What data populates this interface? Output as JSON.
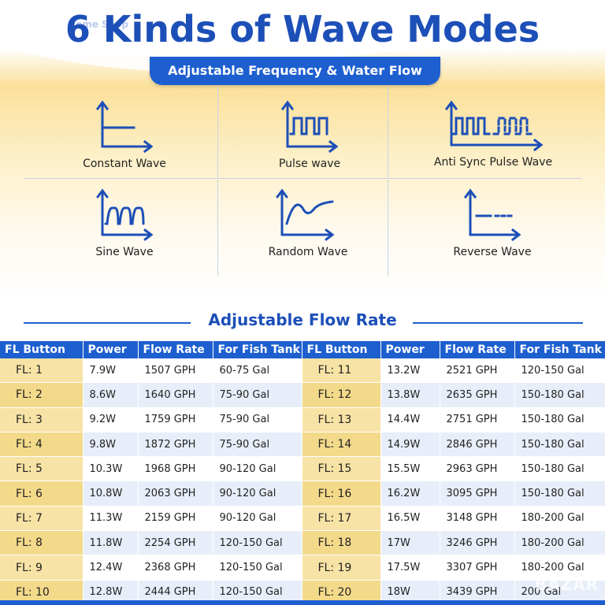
{
  "header": {
    "title": "6 Kinds of Wave Modes",
    "watermark": "Home Shop",
    "subtitle": "Adjustable Frequency & Water Flow"
  },
  "modes": [
    {
      "label": "Constant Wave",
      "icon": "constant-wave-icon"
    },
    {
      "label": "Pulse wave",
      "icon": "pulse-wave-icon"
    },
    {
      "label": "Anti Sync Pulse Wave",
      "icon": "anti-sync-pulse-wave-icon"
    },
    {
      "label": "Sine Wave",
      "icon": "sine-wave-icon"
    },
    {
      "label": "Random Wave",
      "icon": "random-wave-icon"
    },
    {
      "label": "Reverse Wave",
      "icon": "reverse-wave-icon"
    }
  ],
  "flow": {
    "title": "Adjustable Flow Rate",
    "headers": [
      "FL Button",
      "Power",
      "Flow Rate",
      "For Fish Tank",
      "FL Button",
      "Power",
      "Flow Rate",
      "For Fish Tank"
    ],
    "rows": [
      [
        "FL: 1",
        "7.9W",
        "1507 GPH",
        "60-75 Gal",
        "FL: 11",
        "13.2W",
        "2521 GPH",
        "120-150 Gal"
      ],
      [
        "FL: 2",
        "8.6W",
        "1640 GPH",
        "75-90 Gal",
        "FL: 12",
        "13.8W",
        "2635 GPH",
        "150-180 Gal"
      ],
      [
        "FL: 3",
        "9.2W",
        "1759 GPH",
        "75-90 Gal",
        "FL: 13",
        "14.4W",
        "2751 GPH",
        "150-180 Gal"
      ],
      [
        "FL: 4",
        "9.8W",
        "1872 GPH",
        "75-90 Gal",
        "FL: 14",
        "14.9W",
        "2846 GPH",
        "150-180 Gal"
      ],
      [
        "FL: 5",
        "10.3W",
        "1968 GPH",
        "90-120 Gal",
        "FL: 15",
        "15.5W",
        "2963 GPH",
        "150-180 Gal"
      ],
      [
        "FL: 6",
        "10.8W",
        "2063 GPH",
        "90-120 Gal",
        "FL: 16",
        "16.2W",
        "3095 GPH",
        "150-180 Gal"
      ],
      [
        "FL: 7",
        "11.3W",
        "2159 GPH",
        "90-120 Gal",
        "FL: 17",
        "16.5W",
        "3148 GPH",
        "180-200 Gal"
      ],
      [
        "FL: 8",
        "11.8W",
        "2254 GPH",
        "120-150 Gal",
        "FL: 18",
        "17W",
        "3246 GPH",
        "180-200 Gal"
      ],
      [
        "FL: 9",
        "12.4W",
        "2368 GPH",
        "120-150 Gal",
        "FL: 19",
        "17.5W",
        "3307 GPH",
        "180-200 Gal"
      ],
      [
        "FL: 10",
        "12.8W",
        "2444 GPH",
        "120-150 Gal",
        "FL: 20",
        "18W",
        "3439 GPH",
        "200 Gal"
      ]
    ]
  },
  "footer": {
    "watermark": "BAZAR"
  },
  "colors": {
    "accent": "#1e5fd0",
    "title": "#1d4fb8",
    "highlight": "#f6dc92"
  }
}
